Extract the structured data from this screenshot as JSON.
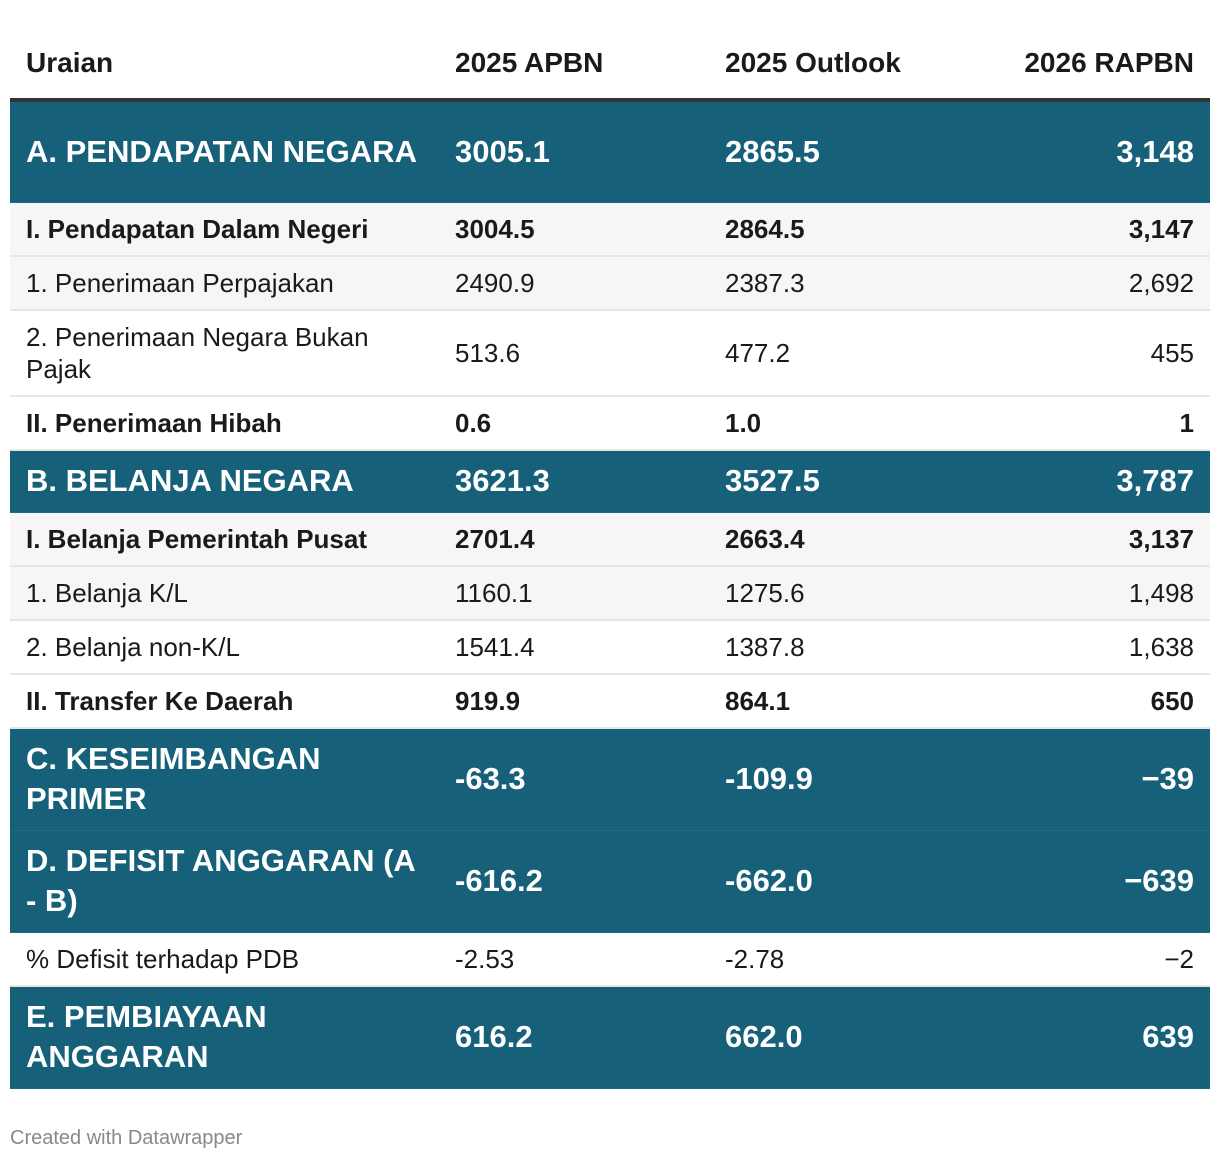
{
  "table": {
    "headers": [
      "Uraian",
      "2025 APBN",
      "2025 Outlook",
      "2026 RAPBN"
    ],
    "rows": [
      {
        "label": "A. PENDAPATAN NEGARA",
        "apbn2025": "3005.1",
        "outlook2025": "2865.5",
        "rapbn2026": "3,148",
        "style": "section"
      },
      {
        "label": "I. Pendapatan Dalam Negeri",
        "apbn2025": "3004.5",
        "outlook2025": "2864.5",
        "rapbn2026": "3,147",
        "style": "sub"
      },
      {
        "label": "1. Penerimaan Perpajakan",
        "apbn2025": "2490.9",
        "outlook2025": "2387.3",
        "rapbn2026": "2,692",
        "style": "item"
      },
      {
        "label": "2. Penerimaan Negara Bukan Pajak",
        "apbn2025": "513.6",
        "outlook2025": "477.2",
        "rapbn2026": "455",
        "style": "item"
      },
      {
        "label": "II. Penerimaan Hibah",
        "apbn2025": "0.6",
        "outlook2025": "1.0",
        "rapbn2026": "1",
        "style": "sub"
      },
      {
        "label": "B. BELANJA NEGARA",
        "apbn2025": "3621.3",
        "outlook2025": "3527.5",
        "rapbn2026": "3,787",
        "style": "section"
      },
      {
        "label": "I. Belanja Pemerintah Pusat",
        "apbn2025": "2701.4",
        "outlook2025": "2663.4",
        "rapbn2026": "3,137",
        "style": "sub"
      },
      {
        "label": "1. Belanja K/L",
        "apbn2025": "1160.1",
        "outlook2025": "1275.6",
        "rapbn2026": "1,498",
        "style": "item"
      },
      {
        "label": "2. Belanja non-K/L",
        "apbn2025": "1541.4",
        "outlook2025": "1387.8",
        "rapbn2026": "1,638",
        "style": "item"
      },
      {
        "label": "II. Transfer Ke Daerah",
        "apbn2025": "919.9",
        "outlook2025": "864.1",
        "rapbn2026": "650",
        "style": "sub"
      },
      {
        "label": "C. KESEIMBANGAN PRIMER",
        "apbn2025": "-63.3",
        "outlook2025": "-109.9",
        "rapbn2026": "−39",
        "style": "section"
      },
      {
        "label": "D. DEFISIT ANGGARAN (A - B)",
        "apbn2025": "-616.2",
        "outlook2025": "-662.0",
        "rapbn2026": "−639",
        "style": "section"
      },
      {
        "label": "% Defisit terhadap PDB",
        "apbn2025": "-2.53",
        "outlook2025": "-2.78",
        "rapbn2026": "−2",
        "style": "item"
      },
      {
        "label": "E. PEMBIAYAAN ANGGARAN",
        "apbn2025": "616.2",
        "outlook2025": "662.0",
        "rapbn2026": "639",
        "style": "section"
      }
    ]
  },
  "footer": {
    "credit": "Created with Datawrapper"
  },
  "colors": {
    "section_bg": "#16607a",
    "section_text": "#ffffff",
    "shaded_row": "#f6f6f6"
  },
  "chart_data": {
    "type": "table",
    "columns": [
      "Uraian",
      "2025 APBN",
      "2025 Outlook",
      "2026 RAPBN"
    ],
    "rows": [
      [
        "A. PENDAPATAN NEGARA",
        3005.1,
        2865.5,
        3148
      ],
      [
        "I. Pendapatan Dalam Negeri",
        3004.5,
        2864.5,
        3147
      ],
      [
        "1. Penerimaan Perpajakan",
        2490.9,
        2387.3,
        2692
      ],
      [
        "2. Penerimaan Negara Bukan Pajak",
        513.6,
        477.2,
        455
      ],
      [
        "II. Penerimaan Hibah",
        0.6,
        1.0,
        1
      ],
      [
        "B. BELANJA NEGARA",
        3621.3,
        3527.5,
        3787
      ],
      [
        "I. Belanja Pemerintah Pusat",
        2701.4,
        2663.4,
        3137
      ],
      [
        "1. Belanja K/L",
        1160.1,
        1275.6,
        1498
      ],
      [
        "2. Belanja non-K/L",
        1541.4,
        1387.8,
        1638
      ],
      [
        "II. Transfer Ke Daerah",
        919.9,
        864.1,
        650
      ],
      [
        "C. KESEIMBANGAN PRIMER",
        -63.3,
        -109.9,
        -39
      ],
      [
        "D. DEFISIT ANGGARAN (A - B)",
        -616.2,
        -662.0,
        -639
      ],
      [
        "% Defisit terhadap PDB",
        -2.53,
        -2.78,
        -2
      ],
      [
        "E. PEMBIAYAAN ANGGARAN",
        616.2,
        662.0,
        639
      ]
    ]
  }
}
